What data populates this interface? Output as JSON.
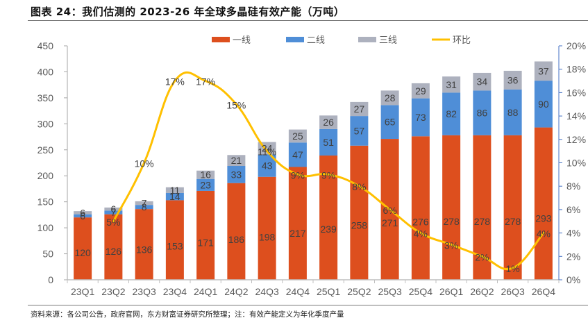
{
  "title": "图表 24：我们估测的 2023-26 年全球多晶硅有效产能（万吨）",
  "source": "资料来源：各公司公告，政府官网，东方财富证券研究所整理；注：有效产能定义为年化季度产量",
  "colors": {
    "tier1": "#DD4F1E",
    "tier2": "#4F8ED7",
    "tier3": "#ADB1BE",
    "qoq": "#FFC000"
  },
  "chart_data": {
    "type": "bar",
    "stacked": true,
    "title": "我们估测的 2023-26 年全球多晶硅有效产能（万吨）",
    "xlabel": "",
    "ylabel": "",
    "categories": [
      "23Q1",
      "23Q2",
      "23Q3",
      "23Q4",
      "24Q1",
      "24Q2",
      "24Q3",
      "24Q4",
      "25Q1",
      "25Q2",
      "25Q3",
      "25Q4",
      "26Q1",
      "26Q2",
      "26Q3",
      "26Q4"
    ],
    "series": [
      {
        "name": "一线",
        "type": "bar",
        "axis": "left",
        "values": [
          120,
          126,
          136,
          153,
          171,
          186,
          198,
          217,
          239,
          258,
          271,
          276,
          278,
          278,
          278,
          293
        ]
      },
      {
        "name": "二线",
        "type": "bar",
        "axis": "left",
        "values": [
          6,
          7,
          8,
          14,
          23,
          33,
          43,
          47,
          51,
          57,
          65,
          73,
          82,
          86,
          88,
          90
        ]
      },
      {
        "name": "三线",
        "type": "bar",
        "axis": "left",
        "values": [
          6,
          6,
          7,
          11,
          16,
          21,
          24,
          25,
          26,
          27,
          28,
          29,
          31,
          34,
          36,
          37
        ]
      },
      {
        "name": "环比",
        "type": "line",
        "axis": "right",
        "smooth": true,
        "values": [
          null,
          5,
          10,
          17,
          17,
          15,
          11,
          9,
          9,
          8,
          6,
          4,
          3,
          2,
          1,
          4
        ],
        "unit": "%"
      }
    ],
    "ylim": [
      0,
      450
    ],
    "yticks": [
      0,
      50,
      100,
      150,
      200,
      250,
      300,
      350,
      400,
      450
    ],
    "y2lim": [
      0,
      20
    ],
    "y2ticks": [
      "0%",
      "2%",
      "4%",
      "6%",
      "8%",
      "10%",
      "12%",
      "14%",
      "16%",
      "18%",
      "20%"
    ],
    "legend": {
      "position": "top",
      "entries": [
        "一线",
        "二线",
        "三线",
        "环比"
      ]
    },
    "grid": false
  }
}
